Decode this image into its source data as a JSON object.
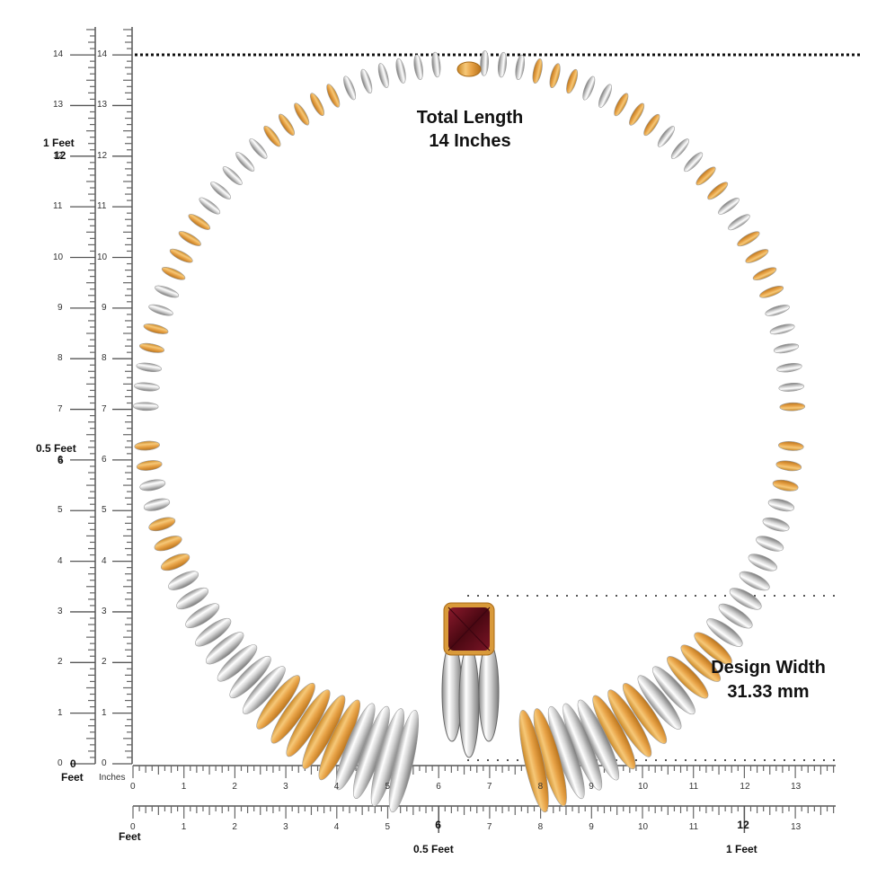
{
  "annotations": {
    "total_length_label": "Total Length",
    "total_length_value": "14 Inches",
    "design_width_label": "Design Width",
    "design_width_value": "31.33 mm"
  },
  "rulers": {
    "vertical_inches": [
      "0",
      "1",
      "2",
      "3",
      "4",
      "5",
      "6",
      "7",
      "8",
      "9",
      "10",
      "11",
      "12",
      "13",
      "14"
    ],
    "horizontal_inches": [
      "0",
      "1",
      "2",
      "3",
      "4",
      "5",
      "6",
      "7",
      "8",
      "9",
      "10",
      "11",
      "12",
      "13"
    ],
    "feet_markers": {
      "zero": "0",
      "zero_unit": "Feet",
      "half": "0.5 Feet",
      "one": "1 Feet",
      "inches_unit": "Inches",
      "feet_unit": "Feet"
    }
  },
  "product": {
    "type": "necklace",
    "metals": [
      "yellow gold",
      "white gold"
    ],
    "center_stone": "garnet cushion sugarloaf",
    "colors": {
      "gold": "#e8a94a",
      "silver": "#d9d9d9",
      "stone": "#6b1020",
      "clasp": "#d99a3a"
    }
  }
}
